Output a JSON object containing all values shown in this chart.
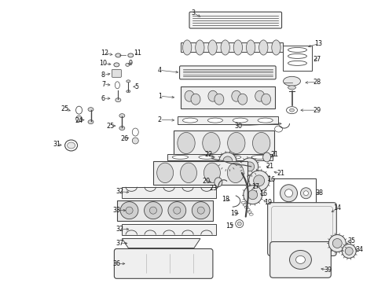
{
  "bg_color": "#ffffff",
  "line_color": "#444444",
  "label_color": "#111111",
  "label_fontsize": 5.8,
  "fig_width": 4.9,
  "fig_height": 3.6,
  "dpi": 100
}
